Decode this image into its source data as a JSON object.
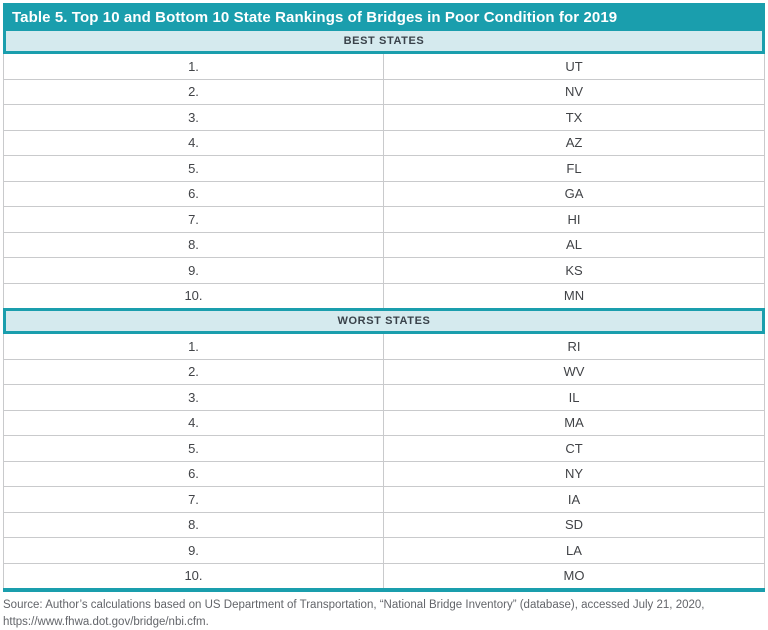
{
  "title": "Table 5. Top 10 and Bottom 10 State Rankings of Bridges in Poor Condition for 2019",
  "sections": {
    "best": {
      "header": "BEST STATES",
      "rows": [
        {
          "rank": "1.",
          "state": "UT"
        },
        {
          "rank": "2.",
          "state": "NV"
        },
        {
          "rank": "3.",
          "state": "TX"
        },
        {
          "rank": "4.",
          "state": "AZ"
        },
        {
          "rank": "5.",
          "state": "FL"
        },
        {
          "rank": "6.",
          "state": "GA"
        },
        {
          "rank": "7.",
          "state": "HI"
        },
        {
          "rank": "8.",
          "state": "AL"
        },
        {
          "rank": "9.",
          "state": "KS"
        },
        {
          "rank": "10.",
          "state": "MN"
        }
      ]
    },
    "worst": {
      "header": "WORST STATES",
      "rows": [
        {
          "rank": "1.",
          "state": "RI"
        },
        {
          "rank": "2.",
          "state": "WV"
        },
        {
          "rank": "3.",
          "state": "IL"
        },
        {
          "rank": "4.",
          "state": "MA"
        },
        {
          "rank": "5.",
          "state": "CT"
        },
        {
          "rank": "6.",
          "state": "NY"
        },
        {
          "rank": "7.",
          "state": "IA"
        },
        {
          "rank": "8.",
          "state": "SD"
        },
        {
          "rank": "9.",
          "state": "LA"
        },
        {
          "rank": "10.",
          "state": "MO"
        }
      ]
    }
  },
  "source": {
    "line1": "Source: Author’s calculations based on US Department of Transportation, “National Bridge Inventory” (database), accessed July 21, 2020,",
    "line2": "https://www.fhwa.dot.gov/bridge/nbi.cfm."
  },
  "colors": {
    "teal": "#1A9EAD",
    "light_teal": "#D5EAEE",
    "grid_gray": "#C9CACC",
    "row_text": "#414347",
    "band_text": "#39424A",
    "source_text": "#63656A"
  }
}
